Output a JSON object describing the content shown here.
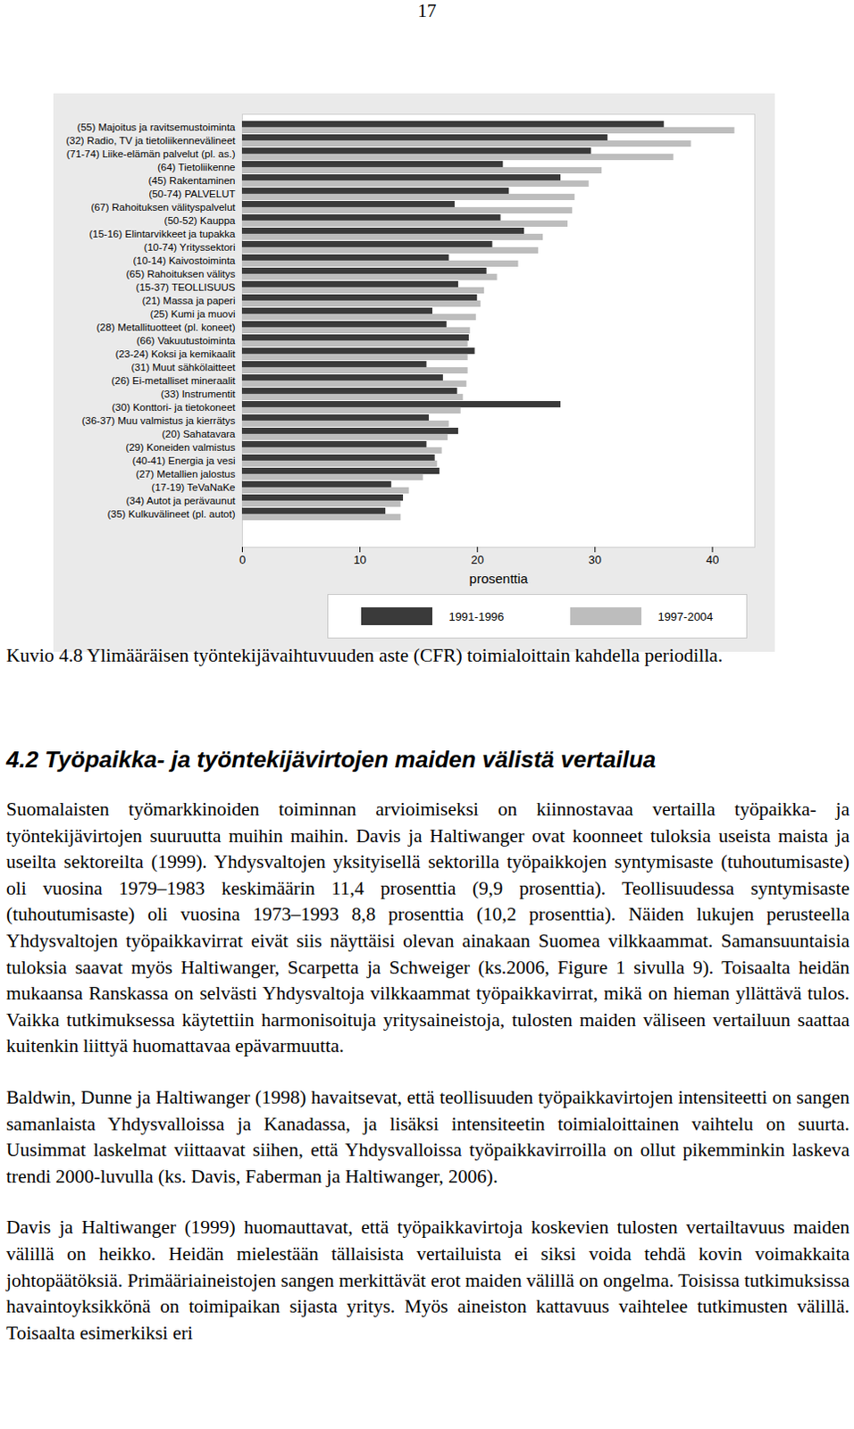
{
  "page_number": "17",
  "chart_data": {
    "type": "bar",
    "orientation": "horizontal",
    "categories": [
      "(55) Majoitus ja ravitsemustoiminta",
      "(32) Radio, TV ja tietoliikennevälineet",
      "(71-74) Liike-elämän palvelut (pl. as.)",
      "(64) Tietoliikenne",
      "(45) Rakentaminen",
      "(50-74) PALVELUT",
      "(67) Rahoituksen välityspalvelut",
      "(50-52) Kauppa",
      "(15-16) Elintarvikkeet ja tupakka",
      "(10-74) Yrityssektori",
      "(10-14) Kaivostoiminta",
      "(65) Rahoituksen välitys",
      "(15-37) TEOLLISUUS",
      "(21) Massa ja paperi",
      "(25) Kumi ja muovi",
      "(28) Metallituotteet (pl. koneet)",
      "(66) Vakuutustoiminta",
      "(23-24) Koksi ja kemikaalit",
      "(31) Muut sähkölaitteet",
      "(26) Ei-metalliset mineraalit",
      "(33) Instrumentit",
      "(30) Konttori- ja tietokoneet",
      "(36-37) Muu valmistus ja kierrätys",
      "(20) Sahatavara",
      "(29) Koneiden valmistus",
      "(40-41) Energia ja vesi",
      "(27) Metallien jalostus",
      "(17-19) TeVaNaKe",
      "(34) Autot ja perävaunut",
      "(35) Kulkuvälineet (pl. autot)"
    ],
    "series": [
      {
        "name": "1991-1996",
        "color": "#3a3a3a",
        "values": [
          35.9,
          31.1,
          29.7,
          22.2,
          27.1,
          22.7,
          18.1,
          22.0,
          24.0,
          21.3,
          17.6,
          20.8,
          18.4,
          20.0,
          16.2,
          17.4,
          19.3,
          19.8,
          15.7,
          17.1,
          18.3,
          27.1,
          15.9,
          18.4,
          15.7,
          16.4,
          16.8,
          12.7,
          13.7,
          12.2
        ]
      },
      {
        "name": "1997-2004",
        "color": "#bdbdbd",
        "values": [
          41.9,
          38.2,
          36.7,
          30.6,
          29.5,
          28.3,
          28.1,
          27.7,
          25.6,
          25.2,
          23.5,
          21.7,
          20.6,
          20.3,
          19.9,
          19.4,
          19.2,
          19.2,
          19.2,
          19.1,
          18.8,
          18.6,
          17.6,
          17.5,
          17.0,
          16.6,
          15.4,
          14.2,
          13.5,
          13.5
        ]
      }
    ],
    "xlim": [
      0,
      43.6
    ],
    "xticks": [
      0,
      10,
      20,
      30,
      40
    ],
    "x_label": "prosenttia",
    "legend": "bottom"
  },
  "caption": "Kuvio 4.8 Ylimääräisen työntekijävaihtuvuuden aste (CFR) toimialoittain kahdella periodilla.",
  "heading": "4.2 Työpaikka- ja työntekijävirtojen maiden välistä vertailua",
  "paragraphs": [
    "Suomalaisten työmarkkinoiden toiminnan arvioimiseksi on kiinnostavaa vertailla työpaikka- ja työntekijävirtojen suuruutta muihin maihin. Davis ja Haltiwanger ovat koonneet tuloksia useista maista ja useilta sektoreilta (1999). Yhdysvaltojen yksityisellä sektorilla työpaikkojen syntymisaste (tuhoutumisaste) oli vuosina 1979–1983 keskimäärin 11,4 prosenttia (9,9 prosenttia). Teollisuudessa syntymisaste (tuhoutumisaste) oli vuosina 1973–1993 8,8 prosenttia (10,2 prosenttia). Näiden lukujen perusteella Yhdysvaltojen työpaikkavirrat eivät siis näyttäisi olevan ainakaan Suomea vilkkaammat. Samansuuntaisia tuloksia saavat myös Haltiwanger, Scarpetta ja Schweiger (ks.2006, Figure 1 sivulla 9). Toisaalta heidän mukaansa Ranskassa on selvästi Yhdysvaltoja vilkkaammat työpaikkavirrat, mikä on hieman yllättävä tulos. Vaikka tutkimuksessa käytettiin harmonisoituja yritysaineistoja, tulosten maiden väliseen vertailuun saattaa kuitenkin liittyä huomattavaa epävarmuutta.",
    "Baldwin, Dunne ja Haltiwanger (1998) havaitsevat, että teollisuuden työpaikkavirtojen intensiteetti on sangen samanlaista Yhdysvalloissa ja Kanadassa, ja lisäksi intensiteetin toimialoittainen vaihtelu on suurta. Uusimmat laskelmat viittaavat siihen, että Yhdysvalloissa työpaikkavirroilla on ollut pikemminkin laskeva trendi 2000-luvulla (ks. Davis, Faberman ja Haltiwanger, 2006).",
    "Davis ja Haltiwanger (1999) huomauttavat, että työpaikkavirtoja koskevien tulosten vertailtavuus maiden välillä on heikko. Heidän mielestään tällaisista vertailuista ei siksi voida tehdä kovin voimakkaita johtopäätöksiä. Primääriaineistojen sangen merkittävät erot maiden välillä on ongelma. Toisissa tutkimuksissa havaintoyksikkönä on toimipaikan sijasta yritys. Myös aineiston kattavuus vaihtelee tutkimusten välillä. Toisaalta esimerkiksi eri"
  ]
}
